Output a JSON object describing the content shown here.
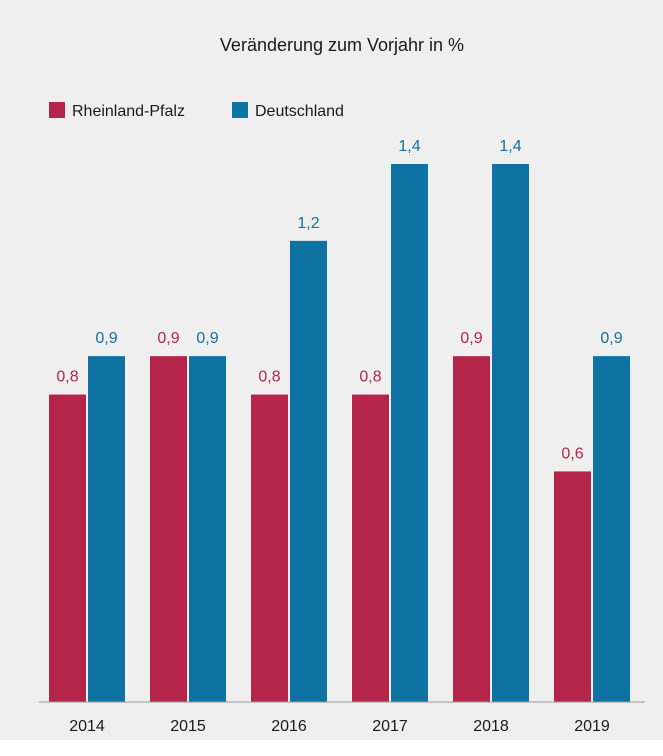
{
  "chart_data": {
    "type": "bar",
    "title": "Veränderung zum Vorjahr in %",
    "xlabel": "",
    "ylabel": "",
    "ylim": [
      0,
      1.4
    ],
    "grid": false,
    "legend_position": "top-left",
    "categories": [
      "2014",
      "2015",
      "2016",
      "2017",
      "2018",
      "2019"
    ],
    "series": [
      {
        "name": "Rheinland-Pfalz",
        "color": "#b5254a",
        "values": [
          0.8,
          0.9,
          0.8,
          0.8,
          0.9,
          0.6
        ],
        "labels": [
          "0,8",
          "0,9",
          "0,8",
          "0,8",
          "0,9",
          "0,6"
        ]
      },
      {
        "name": "Deutschland",
        "color": "#0e72a3",
        "values": [
          0.9,
          0.9,
          1.2,
          1.4,
          1.4,
          0.9
        ],
        "labels": [
          "0,9",
          "0,9",
          "1,2",
          "1,4",
          "1,4",
          "0,9"
        ]
      }
    ]
  }
}
